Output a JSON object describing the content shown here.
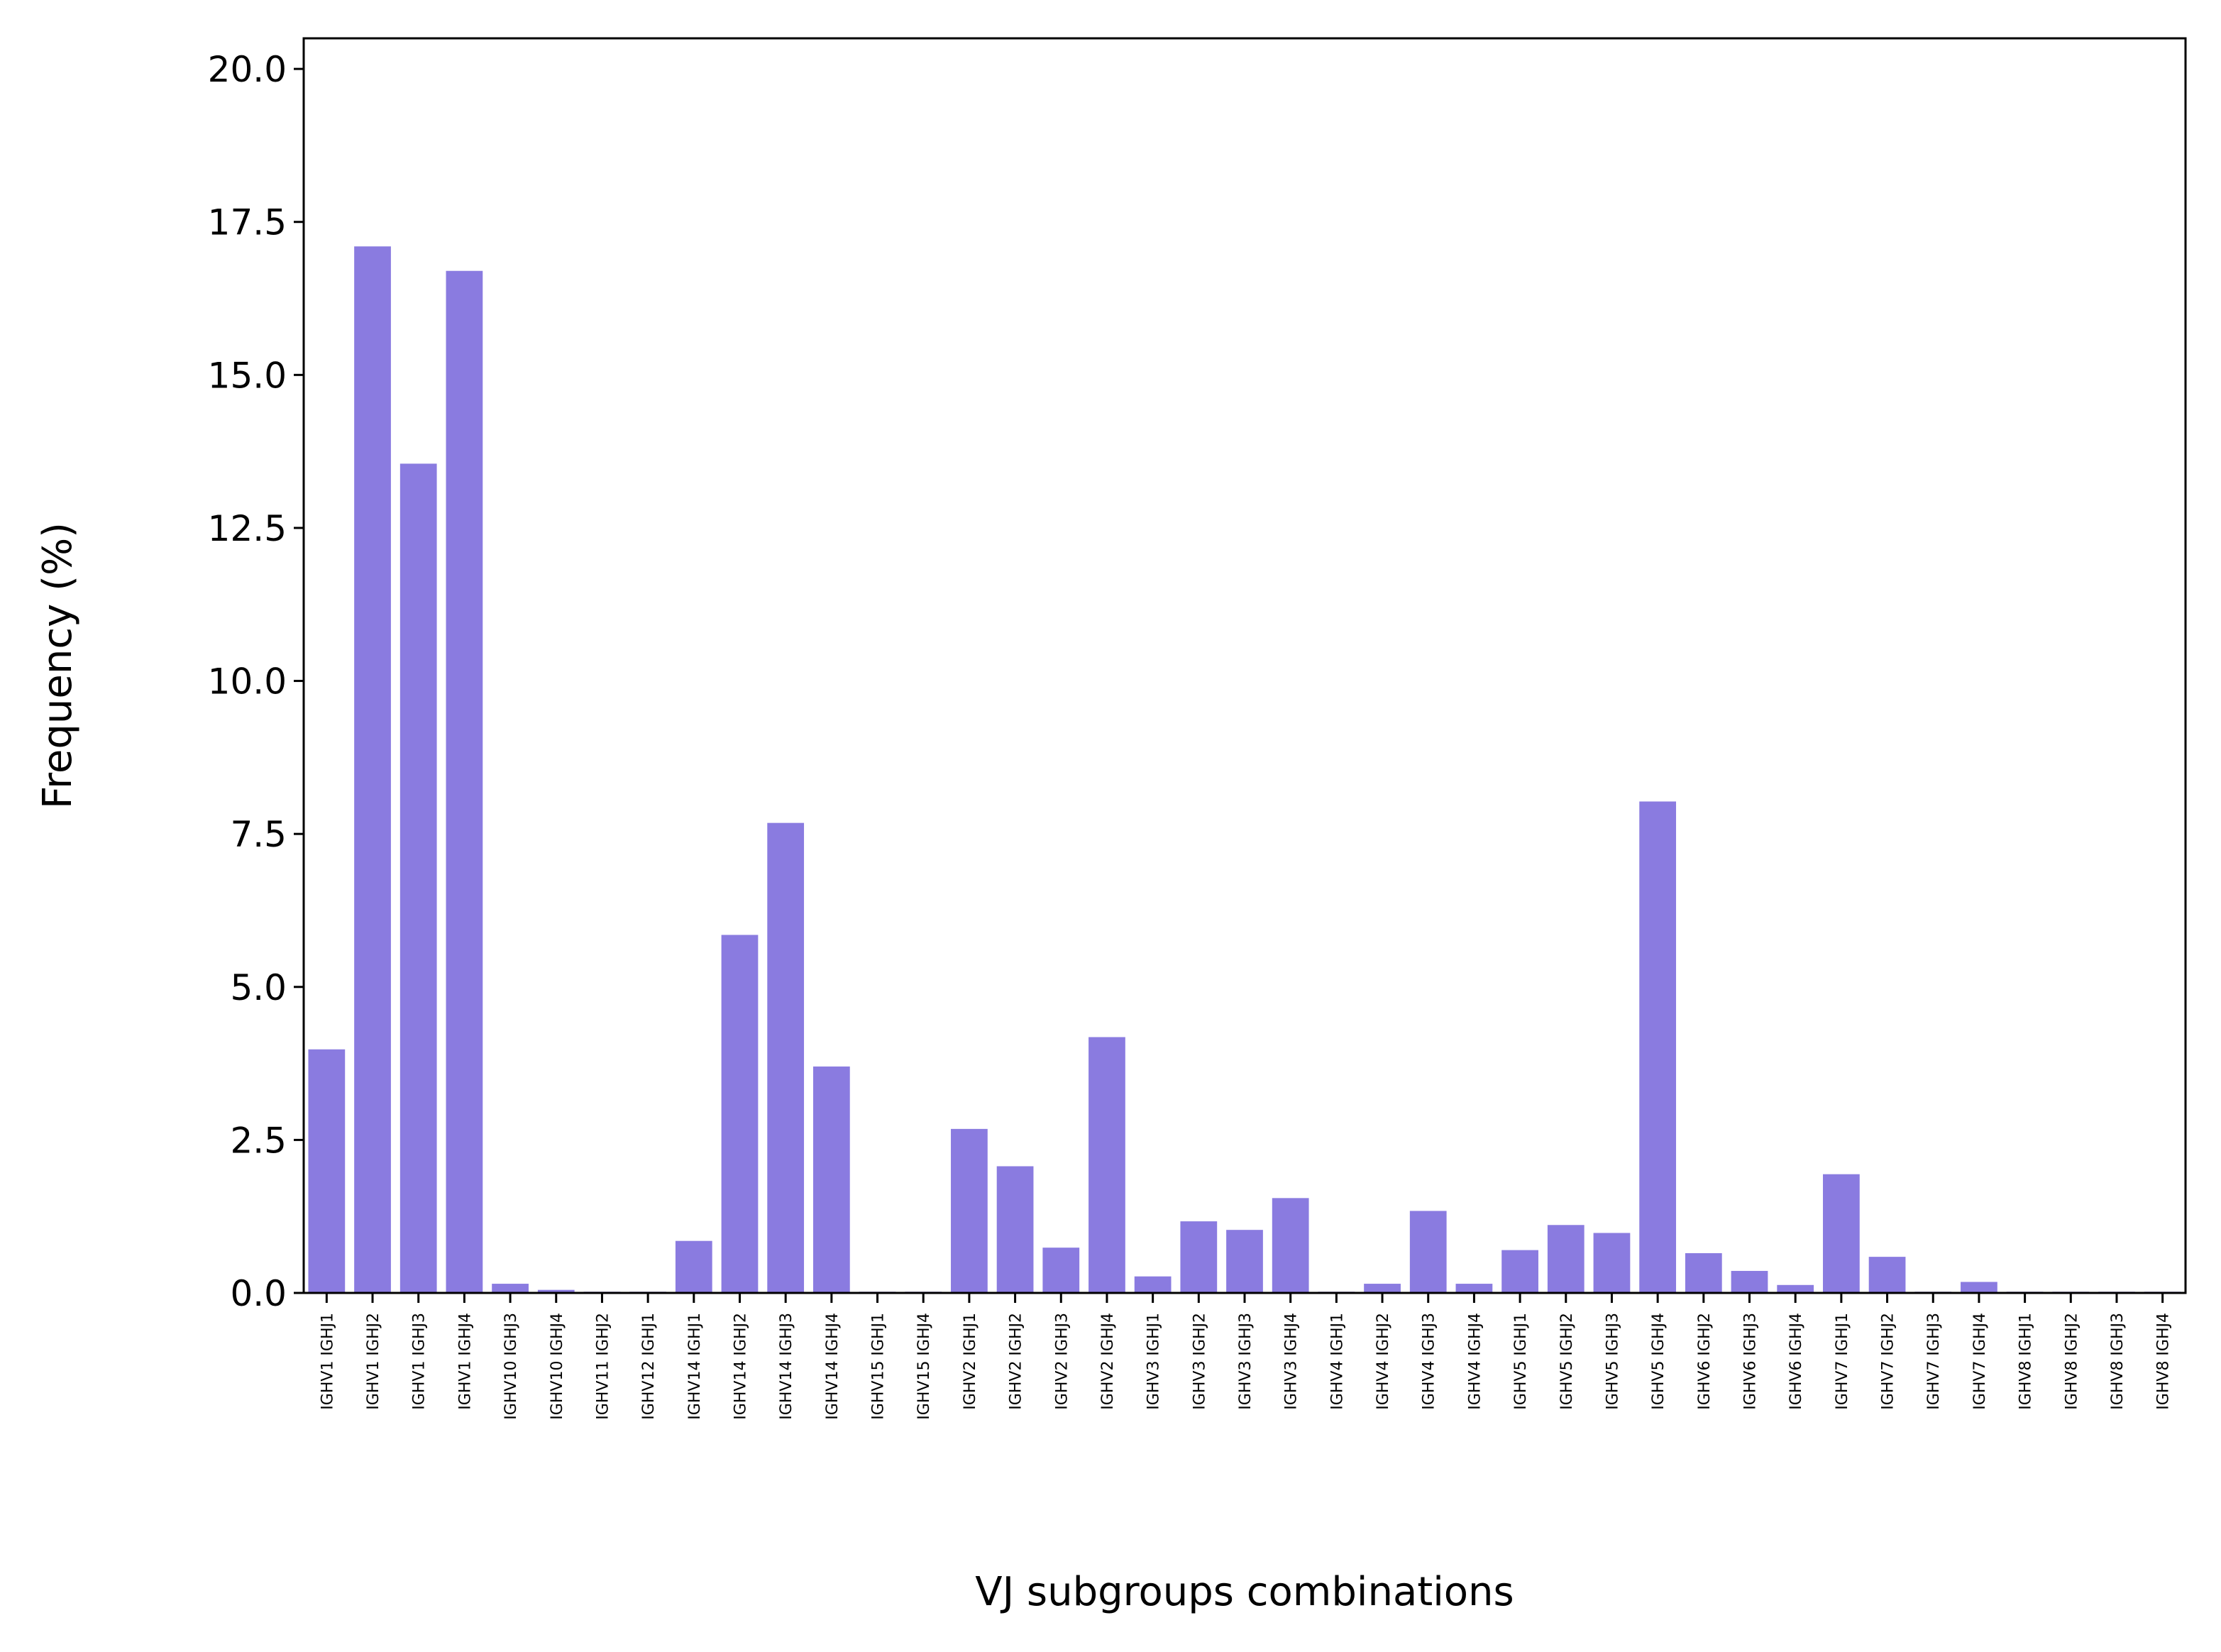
{
  "chart_data": {
    "type": "bar",
    "title": "",
    "xlabel": "VJ subgroups combinations",
    "ylabel": "Frequency (%)",
    "ylim": [
      0,
      20.5
    ],
    "yticks": [
      "0.0",
      "2.5",
      "5.0",
      "7.5",
      "10.0",
      "12.5",
      "15.0",
      "17.5",
      "20.0"
    ],
    "bar_color": "#8a7be0",
    "grid": false,
    "legend": "none",
    "categories": [
      "IGHV1 IGHJ1",
      "IGHV1 IGHJ2",
      "IGHV1 IGHJ3",
      "IGHV1 IGHJ4",
      "IGHV10 IGHJ3",
      "IGHV10 IGHJ4",
      "IGHV11 IGHJ2",
      "IGHV12 IGHJ1",
      "IGHV14 IGHJ1",
      "IGHV14 IGHJ2",
      "IGHV14 IGHJ3",
      "IGHV14 IGHJ4",
      "IGHV15 IGHJ1",
      "IGHV15 IGHJ4",
      "IGHV2 IGHJ1",
      "IGHV2 IGHJ2",
      "IGHV2 IGHJ3",
      "IGHV2 IGHJ4",
      "IGHV3 IGHJ1",
      "IGHV3 IGHJ2",
      "IGHV3 IGHJ3",
      "IGHV3 IGHJ4",
      "IGHV4 IGHJ1",
      "IGHV4 IGHJ2",
      "IGHV4 IGHJ3",
      "IGHV4 IGHJ4",
      "IGHV5 IGHJ1",
      "IGHV5 IGHJ2",
      "IGHV5 IGHJ3",
      "IGHV5 IGHJ4",
      "IGHV6 IGHJ2",
      "IGHV6 IGHJ3",
      "IGHV6 IGHJ4",
      "IGHV7 IGHJ1",
      "IGHV7 IGHJ2",
      "IGHV7 IGHJ3",
      "IGHV7 IGHJ4",
      "IGHV8 IGHJ1",
      "IGHV8 IGHJ2",
      "IGHV8 IGHJ3",
      "IGHV8 IGHJ4"
    ],
    "values": [
      3.98,
      17.1,
      13.55,
      16.7,
      0.15,
      0.05,
      0.02,
      0.02,
      0.85,
      5.85,
      7.68,
      3.7,
      0.02,
      0.02,
      2.68,
      2.07,
      0.74,
      4.18,
      0.27,
      1.17,
      1.03,
      1.55,
      0.02,
      0.15,
      1.34,
      0.15,
      0.7,
      1.11,
      0.98,
      8.03,
      0.65,
      0.36,
      0.13,
      1.94,
      0.59,
      0.02,
      0.18,
      0.02,
      0.02,
      0.02,
      0.02
    ]
  }
}
